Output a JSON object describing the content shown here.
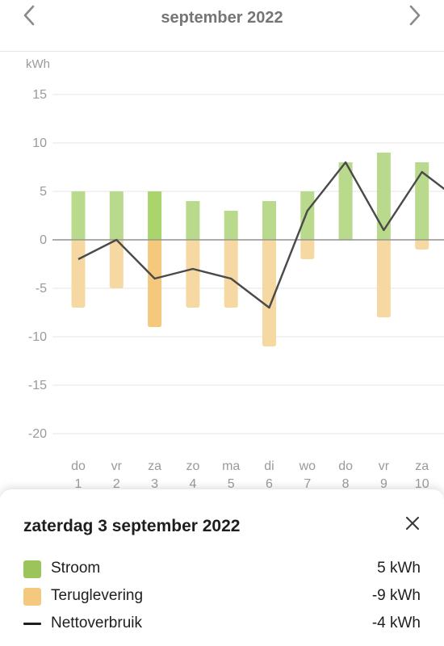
{
  "header": {
    "title": "september 2022",
    "prev_icon": "chevron-left-icon",
    "next_icon": "chevron-right-icon"
  },
  "chart_data": {
    "type": "bar",
    "ylabel": "kWh",
    "ylim": [
      -20,
      15
    ],
    "yticks": [
      15,
      10,
      5,
      0,
      -5,
      -10,
      -15,
      -20
    ],
    "grid": true,
    "categories": [
      {
        "day": "do",
        "date": "1"
      },
      {
        "day": "vr",
        "date": "2"
      },
      {
        "day": "za",
        "date": "3"
      },
      {
        "day": "zo",
        "date": "4"
      },
      {
        "day": "ma",
        "date": "5"
      },
      {
        "day": "di",
        "date": "6"
      },
      {
        "day": "wo",
        "date": "7"
      },
      {
        "day": "do",
        "date": "8"
      },
      {
        "day": "vr",
        "date": "9"
      },
      {
        "day": "za",
        "date": "10"
      },
      {
        "day": "",
        "date": ""
      }
    ],
    "series": [
      {
        "name": "Stroom",
        "type": "bar",
        "color": "#b9d98d",
        "highlight_color": "#a9d56c",
        "values": [
          5,
          5,
          5,
          4,
          3,
          4,
          5,
          8,
          9,
          8,
          null
        ]
      },
      {
        "name": "Teruglevering",
        "type": "bar",
        "color": "#f6d8a2",
        "highlight_color": "#f4c97e",
        "values": [
          -7,
          -5,
          -9,
          -7,
          -7,
          -11,
          -2,
          0,
          -8,
          -1,
          null
        ]
      },
      {
        "name": "Nettoverbruik",
        "type": "line",
        "color": "#4a4a4a",
        "values": [
          -2,
          0,
          -4,
          -3,
          -4,
          -7,
          3,
          8,
          1,
          7,
          4
        ]
      }
    ],
    "selected_index": 2
  },
  "detail": {
    "title": "zaterdag 3 september 2022",
    "close_icon": "close-icon",
    "rows": [
      {
        "label": "Stroom",
        "value": "5 kWh",
        "color": "#9bc55a"
      },
      {
        "label": "Teruglevering",
        "value": "-9 kWh",
        "color": "#f4c97e"
      },
      {
        "label": "Nettoverbruik",
        "value": "-4 kWh",
        "color": "#1e1e1e"
      }
    ]
  }
}
